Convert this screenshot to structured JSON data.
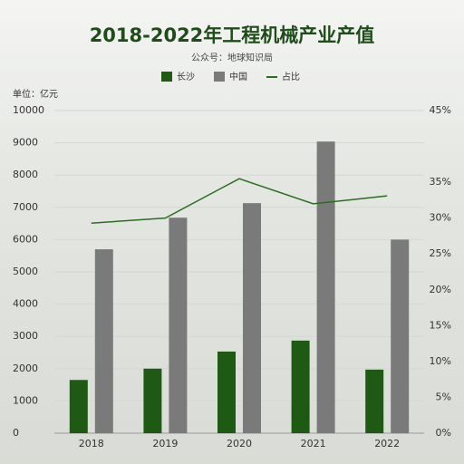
{
  "chart_data": {
    "type": "bar_line",
    "title": "2018-2022年工程机械产业产值",
    "subtitle": "公众号：地球知识局",
    "y_label": "单位：亿元",
    "categories": [
      "2018",
      "2019",
      "2020",
      "2021",
      "2022"
    ],
    "series": [
      {
        "name": "长沙",
        "color": "#1e5a14",
        "type": "bar",
        "values": [
          1650,
          2000,
          2530,
          2870,
          1970
        ]
      },
      {
        "name": "中国",
        "color": "#7a7a7a",
        "type": "bar",
        "values": [
          5700,
          6680,
          7130,
          9040,
          6000
        ]
      },
      {
        "name": "占比",
        "color": "#2a6e20",
        "type": "line",
        "axis": "y2",
        "values": [
          29.3,
          30.0,
          35.5,
          32.0,
          33.1
        ]
      }
    ],
    "ylim": [
      0,
      10000
    ],
    "yticks": [
      0,
      1000,
      2000,
      3000,
      4000,
      5000,
      6000,
      7000,
      8000,
      9000,
      10000
    ],
    "y2lim": [
      0,
      45
    ],
    "y2ticks": [
      {
        "value": 0,
        "label": "0%"
      },
      {
        "value": 5,
        "label": "5%"
      },
      {
        "value": 10,
        "label": "10%"
      },
      {
        "value": 15,
        "label": "15%"
      },
      {
        "value": 20,
        "label": "20%"
      },
      {
        "value": 25,
        "label": "25%"
      },
      {
        "value": 30,
        "label": "30%"
      },
      {
        "value": 35,
        "label": "35%"
      },
      {
        "value": 45,
        "label": "45%"
      }
    ],
    "grid": true
  }
}
